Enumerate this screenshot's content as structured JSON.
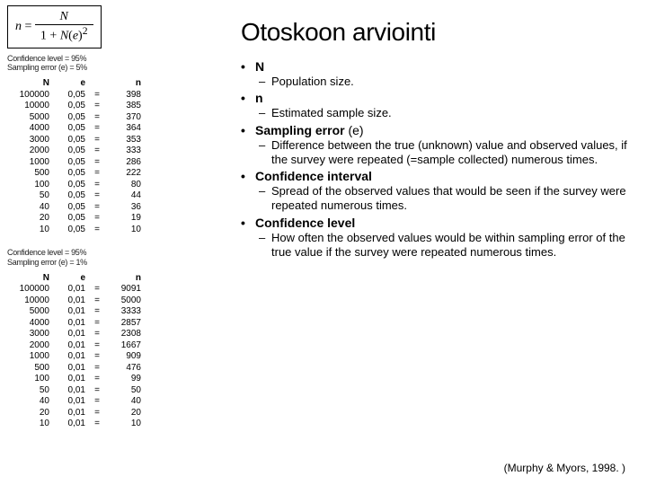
{
  "formula": {
    "lhs_var": "n",
    "eq": " = ",
    "num_var": "N",
    "den_pre": "1 + ",
    "den_var": "N",
    "den_paren_var": "e",
    "den_exp": "2"
  },
  "block1": {
    "conf_line1": "Confidence level = 95%",
    "conf_line2": "Sampling error (e) = 5%",
    "headers": {
      "c1": "N",
      "c2": "e",
      "c3": "",
      "c4": "n"
    },
    "rows": [
      {
        "N": "100000",
        "e": "0,05",
        "eq": "=",
        "n": "398"
      },
      {
        "N": "10000",
        "e": "0,05",
        "eq": "=",
        "n": "385"
      },
      {
        "N": "5000",
        "e": "0,05",
        "eq": "=",
        "n": "370"
      },
      {
        "N": "4000",
        "e": "0,05",
        "eq": "=",
        "n": "364"
      },
      {
        "N": "3000",
        "e": "0,05",
        "eq": "=",
        "n": "353"
      },
      {
        "N": "2000",
        "e": "0,05",
        "eq": "=",
        "n": "333"
      },
      {
        "N": "1000",
        "e": "0,05",
        "eq": "=",
        "n": "286"
      },
      {
        "N": "500",
        "e": "0,05",
        "eq": "=",
        "n": "222"
      },
      {
        "N": "100",
        "e": "0,05",
        "eq": "=",
        "n": "80"
      },
      {
        "N": "50",
        "e": "0,05",
        "eq": "=",
        "n": "44"
      },
      {
        "N": "40",
        "e": "0,05",
        "eq": "=",
        "n": "36"
      },
      {
        "N": "20",
        "e": "0,05",
        "eq": "=",
        "n": "19"
      },
      {
        "N": "10",
        "e": "0,05",
        "eq": "=",
        "n": "10"
      }
    ]
  },
  "block2": {
    "conf_line1": "Confidence level = 95%",
    "conf_line2": "Sampling error (e) = 1%",
    "headers": {
      "c1": "N",
      "c2": "e",
      "c3": "",
      "c4": "n"
    },
    "rows": [
      {
        "N": "100000",
        "e": "0,01",
        "eq": "=",
        "n": "9091"
      },
      {
        "N": "10000",
        "e": "0,01",
        "eq": "=",
        "n": "5000"
      },
      {
        "N": "5000",
        "e": "0,01",
        "eq": "=",
        "n": "3333"
      },
      {
        "N": "4000",
        "e": "0,01",
        "eq": "=",
        "n": "2857"
      },
      {
        "N": "3000",
        "e": "0,01",
        "eq": "=",
        "n": "2308"
      },
      {
        "N": "2000",
        "e": "0,01",
        "eq": "=",
        "n": "1667"
      },
      {
        "N": "1000",
        "e": "0,01",
        "eq": "=",
        "n": "909"
      },
      {
        "N": "500",
        "e": "0,01",
        "eq": "=",
        "n": "476"
      },
      {
        "N": "100",
        "e": "0,01",
        "eq": "=",
        "n": "99"
      },
      {
        "N": "50",
        "e": "0,01",
        "eq": "=",
        "n": "50"
      },
      {
        "N": "40",
        "e": "0,01",
        "eq": "=",
        "n": "40"
      },
      {
        "N": "20",
        "e": "0,01",
        "eq": "=",
        "n": "20"
      },
      {
        "N": "10",
        "e": "0,01",
        "eq": "=",
        "n": "10"
      }
    ]
  },
  "title": "Otoskoon arviointi",
  "bullets": [
    {
      "term": "N",
      "desc": "Population size."
    },
    {
      "term": "n",
      "desc": "Estimated sample size."
    },
    {
      "term_html": "Sampling error <span class=\"nonbold\">(e)</span>",
      "desc": "Difference between the true (unknown) value and observed values, if the survey were repeated (=sample collected) numerous times."
    },
    {
      "term": "Confidence interval",
      "desc": "Spread of the observed values that would be seen if the survey were repeated numerous times."
    },
    {
      "term": "Confidence level",
      "desc": "How often the observed values would be within sampling error of the true value if the survey were repeated numerous times."
    }
  ],
  "reference": "(Murphy & Myors, 1998. )",
  "colors": {
    "text": "#000000",
    "background": "#ffffff"
  },
  "typography": {
    "title_fontsize": 28,
    "bullet_fontsize": 14,
    "sub_fontsize": 13,
    "table_fontsize": 10,
    "conf_fontsize": 9
  }
}
